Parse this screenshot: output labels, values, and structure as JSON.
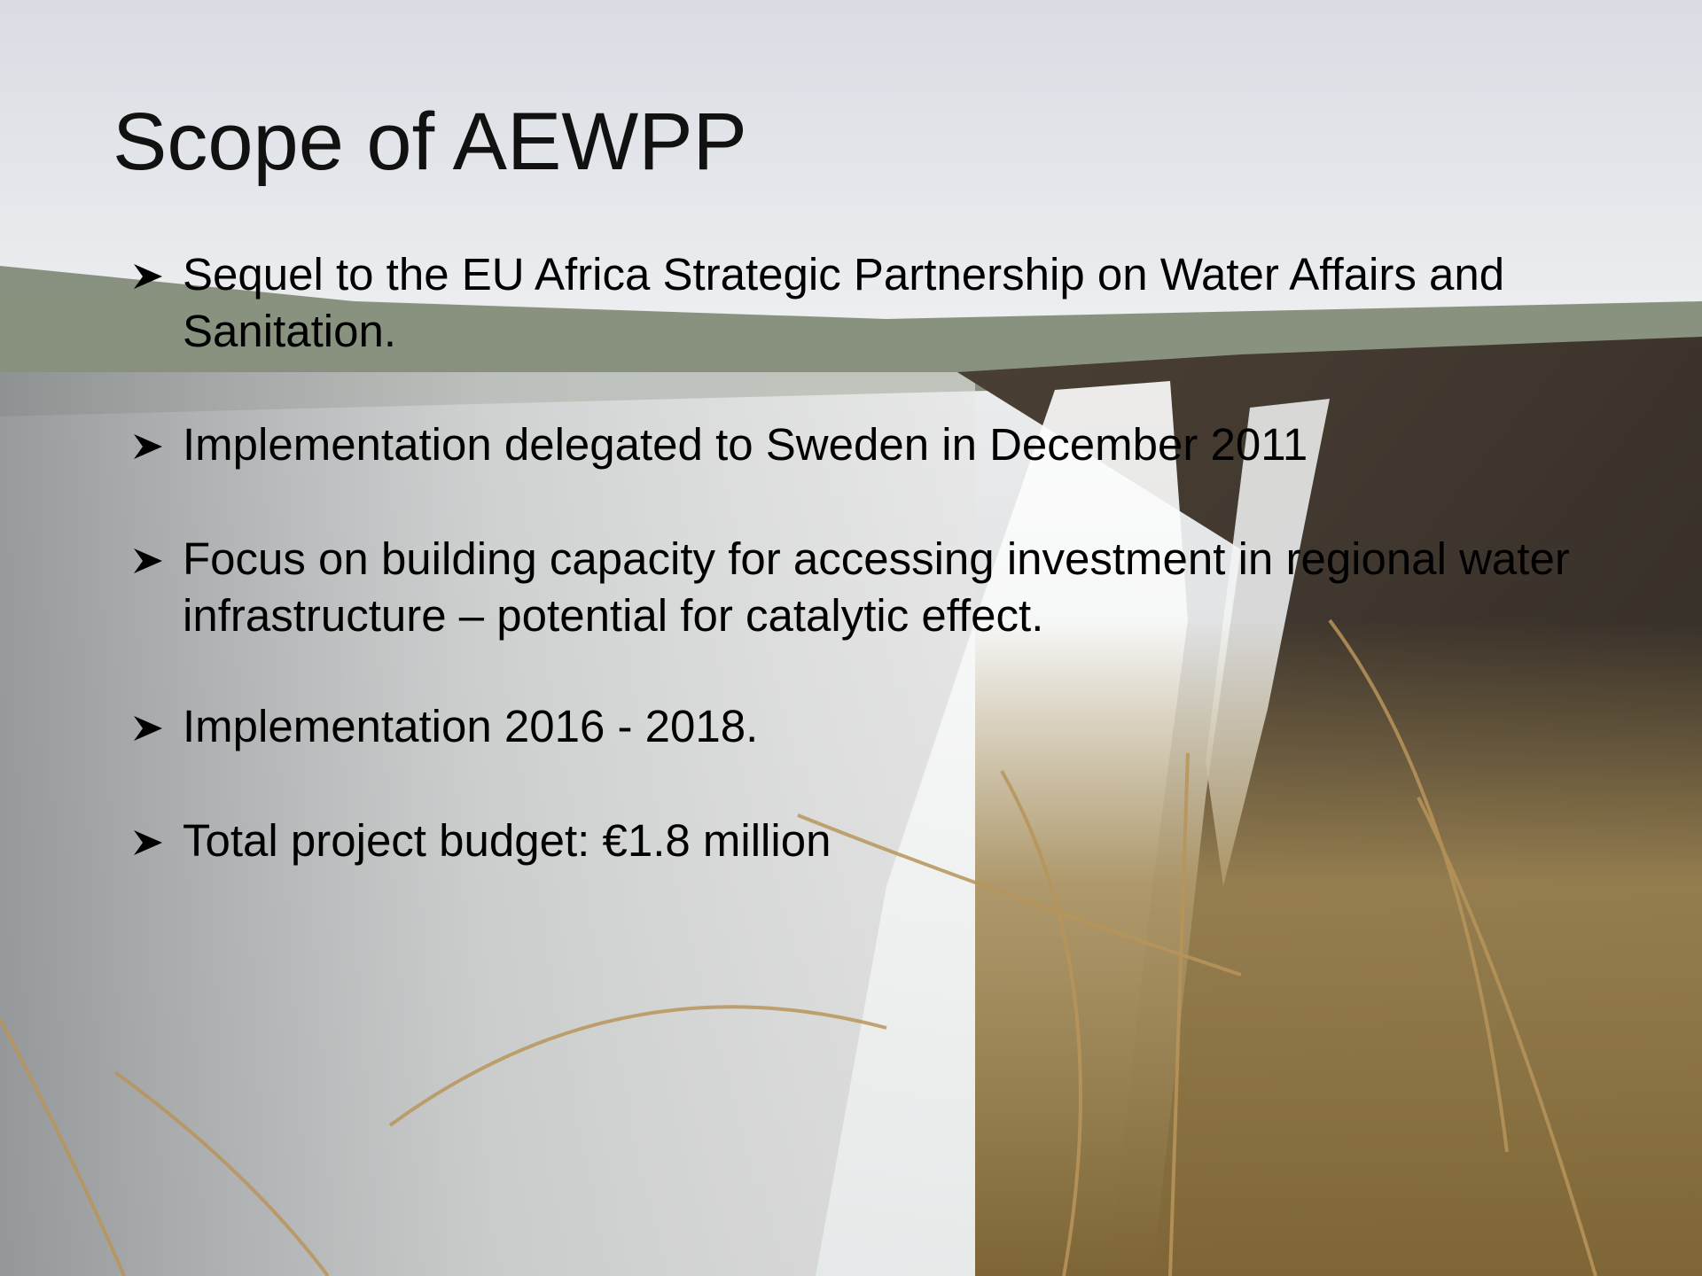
{
  "title": "Scope of AEWPP",
  "bullets": [
    "Sequel to the EU Africa Strategic Partnership on Water Affairs and Sanitation.",
    "Implementation delegated to Sweden in December 2011",
    "Focus on building capacity for accessing investment in regional water infrastructure – potential for catalytic effect.",
    "Implementation 2016 - 2018.",
    "Total project budget: €1.8 million"
  ]
}
